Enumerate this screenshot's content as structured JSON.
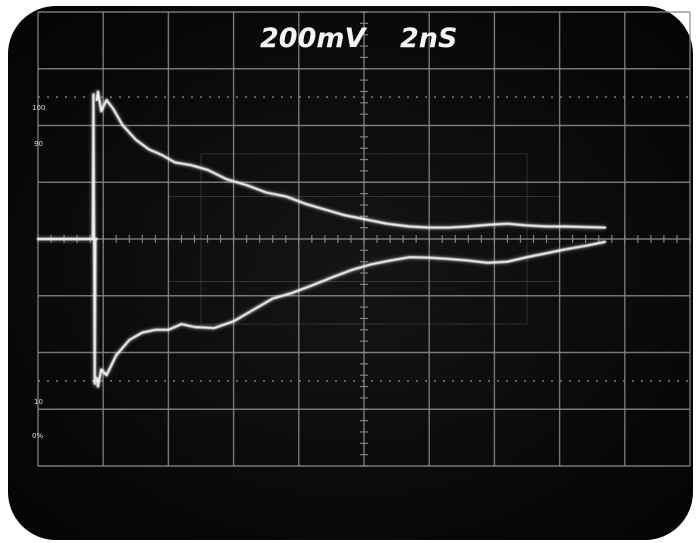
{
  "screen": {
    "volts_per_div": "200mV",
    "time_per_div": "2nS",
    "graticule_marks": {
      "m100": "100",
      "m90": "90",
      "m10": "10",
      "m0": "0%"
    }
  },
  "colors": {
    "trace": "#f2f2f2",
    "grid": "#8a8a8a",
    "screen": "#0b0b0b",
    "bezel": "#ffffff"
  },
  "chart_data": {
    "type": "line",
    "title": "",
    "xlabel": "",
    "ylabel": "",
    "xlim": [
      0,
      10
    ],
    "ylim": [
      -4,
      4
    ],
    "grid": true,
    "x_units": "2nS/div",
    "y_units": "200mV/div",
    "series": [
      {
        "values": [
          [
            0.0,
            0.0
          ],
          [
            0.82,
            0.0
          ],
          [
            0.84,
            0.0
          ],
          [
            0.85,
            2.55
          ],
          [
            0.86,
            0.0
          ],
          [
            0.87,
            -2.55
          ],
          [
            0.88,
            0.0
          ],
          [
            0.9,
            0.0
          ]
        ]
      },
      {
        "values": [
          [
            0.9,
            2.45
          ],
          [
            0.92,
            2.6
          ],
          [
            0.97,
            2.25
          ],
          [
            1.05,
            2.45
          ],
          [
            1.15,
            2.3
          ],
          [
            1.3,
            2.0
          ],
          [
            1.5,
            1.75
          ],
          [
            1.7,
            1.58
          ],
          [
            1.9,
            1.48
          ],
          [
            2.1,
            1.35
          ],
          [
            2.35,
            1.3
          ],
          [
            2.6,
            1.22
          ],
          [
            2.9,
            1.05
          ],
          [
            3.2,
            0.95
          ],
          [
            3.5,
            0.82
          ],
          [
            3.8,
            0.75
          ],
          [
            4.1,
            0.62
          ],
          [
            4.4,
            0.52
          ],
          [
            4.7,
            0.42
          ],
          [
            5.0,
            0.35
          ],
          [
            5.35,
            0.27
          ],
          [
            5.7,
            0.22
          ],
          [
            6.0,
            0.2
          ],
          [
            6.3,
            0.2
          ],
          [
            6.6,
            0.22
          ],
          [
            6.9,
            0.25
          ],
          [
            7.2,
            0.27
          ],
          [
            7.5,
            0.24
          ],
          [
            7.8,
            0.22
          ],
          [
            8.1,
            0.22
          ],
          [
            8.4,
            0.21
          ],
          [
            8.7,
            0.2
          ]
        ]
      },
      {
        "values": [
          [
            0.9,
            -2.45
          ],
          [
            0.92,
            -2.6
          ],
          [
            0.97,
            -2.3
          ],
          [
            1.05,
            -2.4
          ],
          [
            1.2,
            -2.05
          ],
          [
            1.4,
            -1.78
          ],
          [
            1.6,
            -1.65
          ],
          [
            1.8,
            -1.6
          ],
          [
            2.0,
            -1.6
          ],
          [
            2.2,
            -1.5
          ],
          [
            2.4,
            -1.55
          ],
          [
            2.7,
            -1.57
          ],
          [
            3.0,
            -1.45
          ],
          [
            3.3,
            -1.25
          ],
          [
            3.6,
            -1.05
          ],
          [
            3.9,
            -0.95
          ],
          [
            4.2,
            -0.82
          ],
          [
            4.5,
            -0.68
          ],
          [
            4.8,
            -0.55
          ],
          [
            5.1,
            -0.45
          ],
          [
            5.4,
            -0.38
          ],
          [
            5.7,
            -0.32
          ],
          [
            6.0,
            -0.33
          ],
          [
            6.3,
            -0.35
          ],
          [
            6.6,
            -0.38
          ],
          [
            6.9,
            -0.42
          ],
          [
            7.2,
            -0.4
          ],
          [
            7.5,
            -0.32
          ],
          [
            7.8,
            -0.25
          ],
          [
            8.1,
            -0.18
          ],
          [
            8.4,
            -0.12
          ],
          [
            8.7,
            -0.05
          ]
        ]
      }
    ]
  }
}
